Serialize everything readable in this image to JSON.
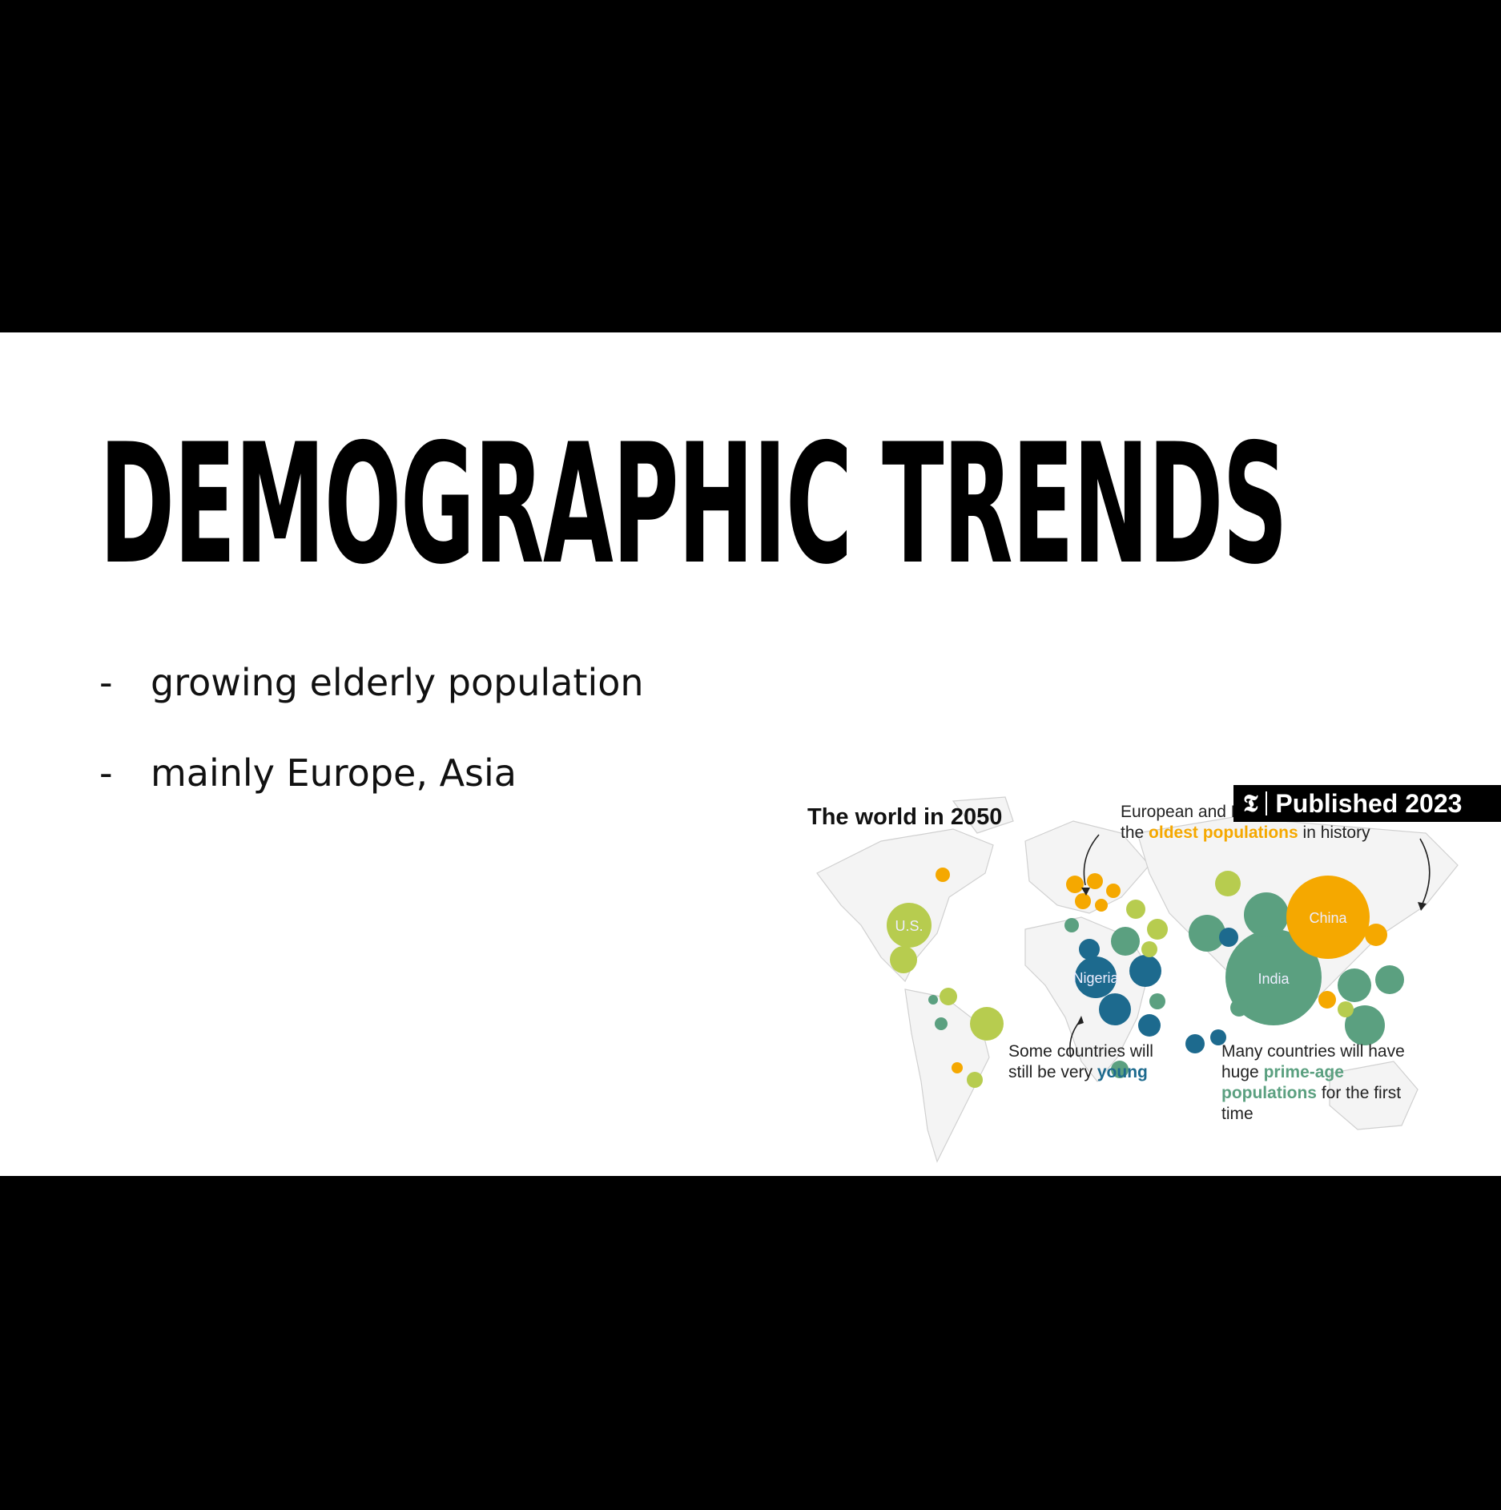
{
  "slide": {
    "title": "DEMOGRAPHIC TRENDS",
    "bullets": [
      {
        "marker": "-",
        "text": "growing elderly population"
      },
      {
        "marker": "-",
        "text": "mainly Europe, Asia"
      }
    ]
  },
  "map": {
    "title": "The world in 2050",
    "badge": {
      "logo": "𝕿",
      "text": "Published 2023"
    },
    "annotations": {
      "oldest": {
        "before": "European and East Asian countries will have the ",
        "highlight": "oldest populations",
        "after": " in history"
      },
      "young": {
        "before": "Some countries will still be very ",
        "highlight": "young",
        "after": ""
      },
      "prime": {
        "before": "Many countries will have huge ",
        "highlight": "prime-age populations",
        "after": " for the first time"
      }
    },
    "bubble_labels": {
      "us": "U.S.",
      "china": "China",
      "india": "India",
      "nigeria": "Nigeria"
    },
    "colors": {
      "oldest": "#f5a800",
      "prime_age": "#5ba080",
      "young": "#1d6a8e",
      "light_green": "#b7cc4f",
      "land": "#dcdcdc"
    }
  }
}
